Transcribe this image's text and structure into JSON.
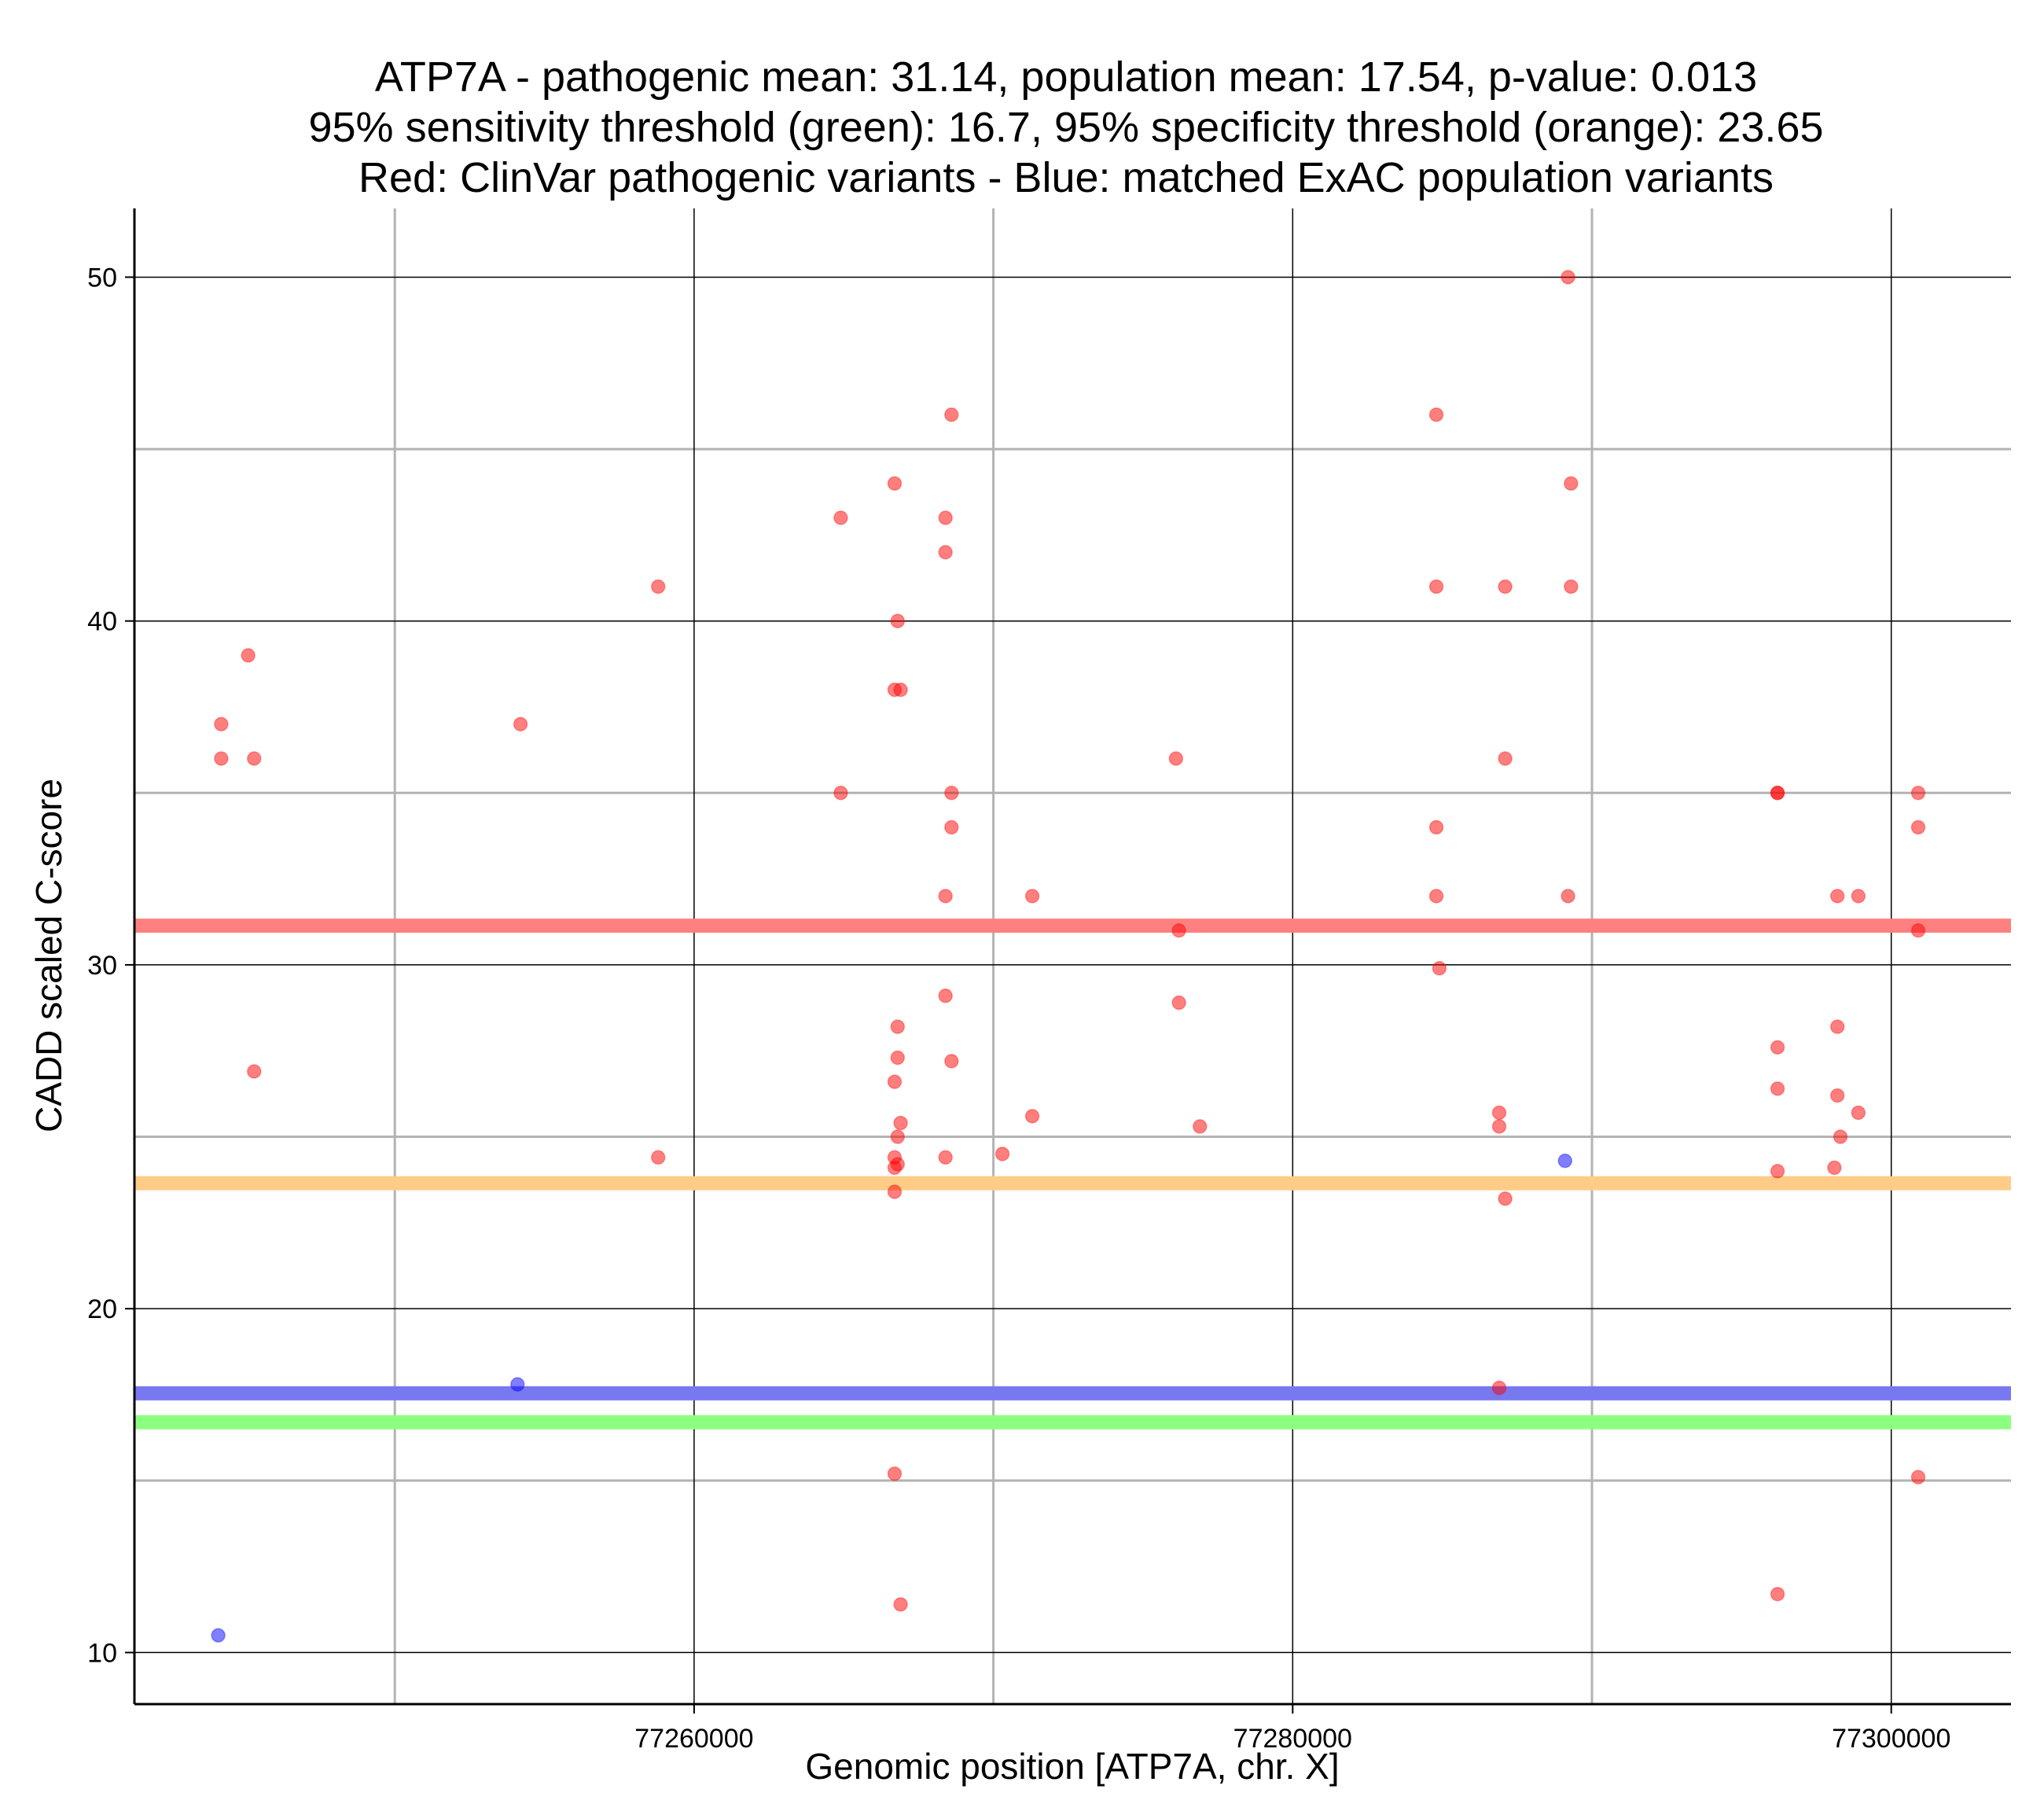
{
  "chart_data": {
    "type": "scatter",
    "title": [
      "ATP7A - pathogenic mean: 31.14, population mean: 17.54, p-value: 0.013",
      "95% sensitivity threshold (green): 16.7, 95% specificity threshold (orange): 23.65",
      "Red: ClinVar pathogenic variants - Blue: matched ExAC population variants"
    ],
    "xlabel": "Genomic position [ATP7A, chr. X]",
    "ylabel": "CADD scaled C-score",
    "xlim": [
      77241300,
      77304000
    ],
    "ylim": [
      8.5,
      52
    ],
    "x_ticks": [
      77260000,
      77280000,
      77300000
    ],
    "x_tick_labels": [
      "77260000",
      "77280000",
      "77300000"
    ],
    "y_ticks": [
      10,
      20,
      30,
      40,
      50
    ],
    "y_tick_labels": [
      "10",
      "20",
      "30",
      "40",
      "50"
    ],
    "x_minor_grid": [
      77250000,
      77270000,
      77290000
    ],
    "y_minor_grid": [
      15,
      25,
      35,
      45
    ],
    "grid": true,
    "reference_lines": [
      {
        "name": "pathogenic mean",
        "value": 31.14,
        "color": "#ff8080"
      },
      {
        "name": "95% specificity threshold",
        "value": 23.65,
        "color": "#ffcc88"
      },
      {
        "name": "population mean",
        "value": 17.54,
        "color": "#7878f0"
      },
      {
        "name": "95% sensitivity threshold",
        "value": 16.7,
        "color": "#8cff80"
      }
    ],
    "series": [
      {
        "name": "ClinVar pathogenic variants",
        "color": "#ff0000",
        "points": [
          [
            77244200,
            37
          ],
          [
            77244200,
            36
          ],
          [
            77245100,
            39
          ],
          [
            77245300,
            36
          ],
          [
            77245300,
            26.9
          ],
          [
            77254200,
            37
          ],
          [
            77258800,
            41
          ],
          [
            77258800,
            24.4
          ],
          [
            77264900,
            43
          ],
          [
            77264900,
            35
          ],
          [
            77266700,
            44
          ],
          [
            77266700,
            38
          ],
          [
            77266800,
            40
          ],
          [
            77266900,
            38
          ],
          [
            77266700,
            26.6
          ],
          [
            77266800,
            25
          ],
          [
            77266900,
            25.4
          ],
          [
            77266700,
            24.4
          ],
          [
            77266700,
            24.1
          ],
          [
            77266800,
            24.2
          ],
          [
            77266700,
            23.4
          ],
          [
            77266800,
            28.2
          ],
          [
            77266800,
            27.3
          ],
          [
            77266700,
            15.2
          ],
          [
            77266900,
            11.4
          ],
          [
            77268400,
            43
          ],
          [
            77268400,
            42
          ],
          [
            77268600,
            46
          ],
          [
            77268600,
            35
          ],
          [
            77268600,
            34
          ],
          [
            77268400,
            32
          ],
          [
            77268400,
            29.1
          ],
          [
            77268600,
            27.2
          ],
          [
            77268400,
            24.4
          ],
          [
            77270300,
            24.5
          ],
          [
            77271300,
            32
          ],
          [
            77271300,
            25.6
          ],
          [
            77276100,
            36
          ],
          [
            77276200,
            31
          ],
          [
            77276200,
            28.9
          ],
          [
            77276900,
            25.3
          ],
          [
            77284800,
            46
          ],
          [
            77284800,
            41
          ],
          [
            77284800,
            34
          ],
          [
            77284800,
            32
          ],
          [
            77284900,
            29.9
          ],
          [
            77287100,
            41
          ],
          [
            77287100,
            36
          ],
          [
            77286900,
            25.7
          ],
          [
            77286900,
            25.3
          ],
          [
            77287100,
            23.2
          ],
          [
            77286900,
            17.7
          ],
          [
            77289200,
            50
          ],
          [
            77289300,
            44
          ],
          [
            77289300,
            41
          ],
          [
            77289200,
            32
          ],
          [
            77296200,
            35
          ],
          [
            77296200,
            35
          ],
          [
            77296200,
            27.6
          ],
          [
            77296200,
            26.4
          ],
          [
            77296200,
            24
          ],
          [
            77296200,
            11.7
          ],
          [
            77298200,
            32
          ],
          [
            77298900,
            32
          ],
          [
            77298200,
            28.2
          ],
          [
            77298200,
            26.2
          ],
          [
            77298300,
            25
          ],
          [
            77298900,
            25.7
          ],
          [
            77298100,
            24.1
          ],
          [
            77300900,
            35
          ],
          [
            77300900,
            34
          ],
          [
            77300900,
            31
          ],
          [
            77300900,
            15.1
          ]
        ]
      },
      {
        "name": "matched ExAC population variants",
        "color": "#0000ff",
        "points": [
          [
            77244100,
            10.5
          ],
          [
            77254100,
            17.8
          ],
          [
            77289100,
            24.3
          ]
        ]
      }
    ]
  }
}
